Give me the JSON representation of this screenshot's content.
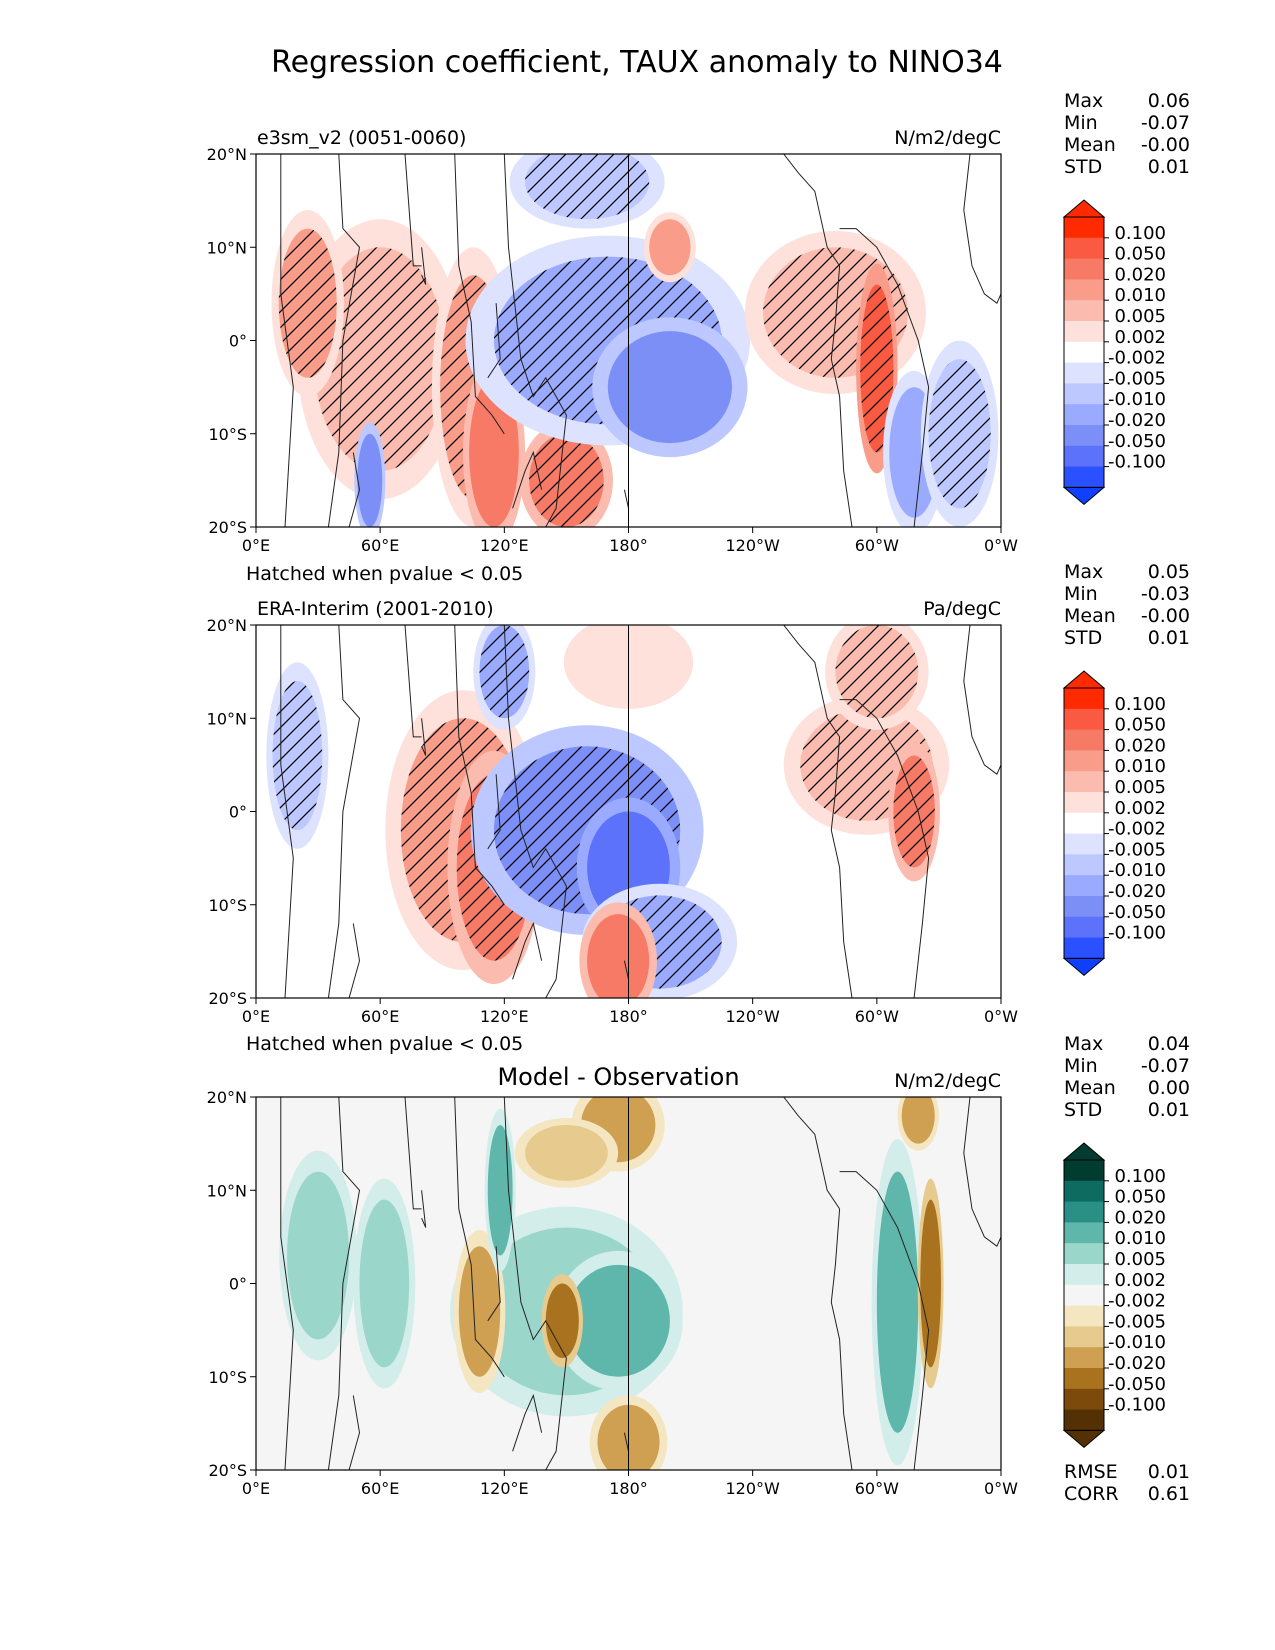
{
  "figure": {
    "title": "Regression coefficient, TAUX anomaly to NINO34"
  },
  "chart_data": [
    {
      "type": "heatmap",
      "id": "model",
      "title": "e3sm_v2 (0051-0060)",
      "units": "N/m2/degC",
      "center_title": "",
      "note": "",
      "stats": [
        {
          "label": "Max",
          "value": "0.06"
        },
        {
          "label": "Min",
          "value": "-0.07"
        },
        {
          "label": "Mean",
          "value": "-0.00"
        },
        {
          "label": "STD",
          "value": "0.01"
        }
      ],
      "xticks": [
        "0°E",
        "60°E",
        "120°E",
        "180°",
        "120°W",
        "60°W",
        "0°W"
      ],
      "yticks": [
        "20°N",
        "10°N",
        "0°",
        "10°S",
        "20°S"
      ],
      "xlim": [
        0,
        360
      ],
      "ylim": [
        -20,
        20
      ],
      "colorbar": {
        "levels": [
          "0.100",
          "0.050",
          "0.020",
          "0.010",
          "0.005",
          "0.002",
          "-0.002",
          "-0.005",
          "-0.010",
          "-0.020",
          "-0.050",
          "-0.100"
        ],
        "colors": [
          "#ff2a00",
          "#fa5a41",
          "#f77a66",
          "#f99d8a",
          "#fbbcaf",
          "#fde1da",
          "#ffffff",
          "#dde3ff",
          "#bcc8ff",
          "#9aabff",
          "#7b8ff6",
          "#5c72fb",
          "#2a50ff"
        ],
        "extend_max": "#ff2a00",
        "extend_min": "#1040ff"
      },
      "hatch_note": "Hatched when pvalue < 0.05"
    },
    {
      "type": "heatmap",
      "id": "obs",
      "title": "ERA-Interim (2001-2010)",
      "units": "Pa/degC",
      "center_title": "",
      "note": "",
      "stats": [
        {
          "label": "Max",
          "value": "0.05"
        },
        {
          "label": "Min",
          "value": "-0.03"
        },
        {
          "label": "Mean",
          "value": "-0.00"
        },
        {
          "label": "STD",
          "value": "0.01"
        }
      ],
      "xticks": [
        "0°E",
        "60°E",
        "120°E",
        "180°",
        "120°W",
        "60°W",
        "0°W"
      ],
      "yticks": [
        "20°N",
        "10°N",
        "0°",
        "10°S",
        "20°S"
      ],
      "xlim": [
        0,
        360
      ],
      "ylim": [
        -20,
        20
      ],
      "colorbar": {
        "levels": [
          "0.100",
          "0.050",
          "0.020",
          "0.010",
          "0.005",
          "0.002",
          "-0.002",
          "-0.005",
          "-0.010",
          "-0.020",
          "-0.050",
          "-0.100"
        ],
        "colors": [
          "#ff2a00",
          "#fa5a41",
          "#f77a66",
          "#f99d8a",
          "#fbbcaf",
          "#fde1da",
          "#ffffff",
          "#dde3ff",
          "#bcc8ff",
          "#9aabff",
          "#7b8ff6",
          "#5c72fb",
          "#2a50ff"
        ],
        "extend_max": "#ff2a00",
        "extend_min": "#1040ff"
      },
      "hatch_note": "Hatched when pvalue < 0.05"
    },
    {
      "type": "heatmap",
      "id": "diff",
      "title": "",
      "units": "N/m2/degC",
      "center_title": "Model - Observation",
      "note": "",
      "stats": [
        {
          "label": "Max",
          "value": "0.04"
        },
        {
          "label": "Min",
          "value": "-0.07"
        },
        {
          "label": "Mean",
          "value": "0.00"
        },
        {
          "label": "STD",
          "value": "0.01"
        }
      ],
      "xticks": [
        "0°E",
        "60°E",
        "120°E",
        "180°",
        "120°W",
        "60°W",
        "0°W"
      ],
      "yticks": [
        "20°N",
        "10°N",
        "0°",
        "10°S",
        "20°S"
      ],
      "xlim": [
        0,
        360
      ],
      "ylim": [
        -20,
        20
      ],
      "colorbar": {
        "levels": [
          "0.100",
          "0.050",
          "0.020",
          "0.010",
          "0.005",
          "0.002",
          "-0.002",
          "-0.005",
          "-0.010",
          "-0.020",
          "-0.050",
          "-0.100"
        ],
        "colors": [
          "#003c30",
          "#0d6b60",
          "#2a8f85",
          "#5fb6aa",
          "#9bd6cb",
          "#d3eeea",
          "#f5f5f5",
          "#f4e6c0",
          "#e7cb8e",
          "#cf9f52",
          "#a8721e",
          "#7c4a0a",
          "#543005"
        ],
        "extend_max": "#003c30",
        "extend_min": "#543005"
      },
      "metrics": [
        {
          "label": "RMSE",
          "value": "0.01"
        },
        {
          "label": "CORR",
          "value": "0.61"
        }
      ]
    }
  ]
}
